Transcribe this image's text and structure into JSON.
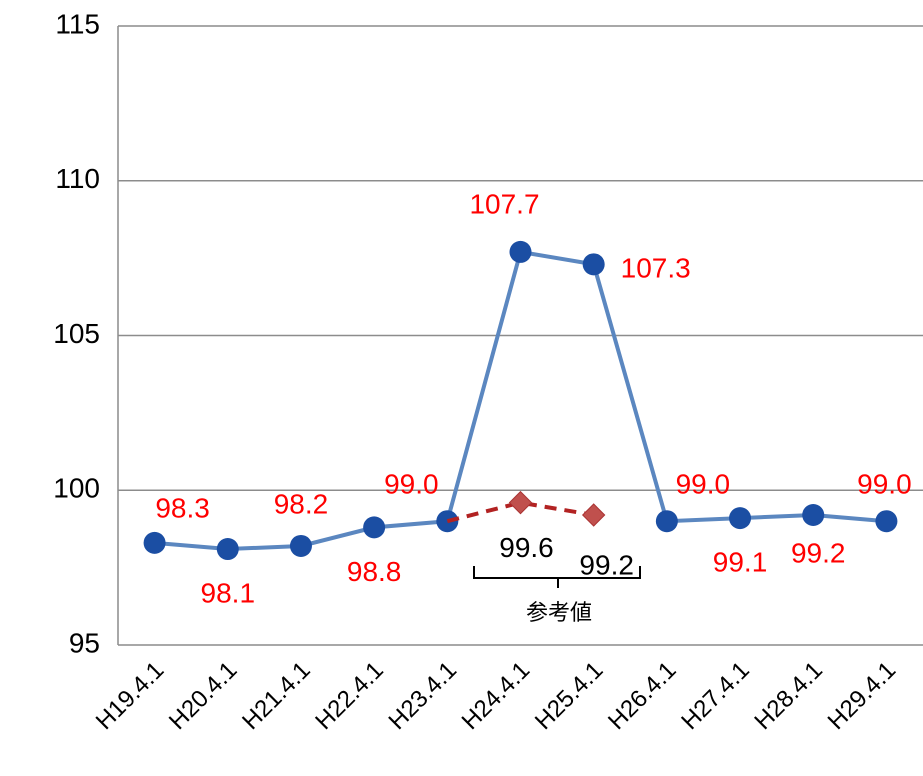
{
  "chart_data": {
    "type": "line",
    "categories": [
      "H19.4.1",
      "H20.4.1",
      "H21.4.1",
      "H22.4.1",
      "H23.4.1",
      "H24.4.1",
      "H25.4.1",
      "H26.4.1",
      "H27.4.1",
      "H28.4.1",
      "H29.4.1"
    ],
    "series": [
      {
        "name": null,
        "color": "#5b87c0",
        "marker_color": "#1b4ea3",
        "label_color": "#ff0000",
        "marker": "circle",
        "dashed": false,
        "values": [
          98.3,
          98.1,
          98.2,
          98.8,
          99.0,
          107.7,
          107.3,
          99.0,
          99.1,
          99.2,
          99.0
        ],
        "value_labels": [
          "98.3",
          "98.1",
          "98.2",
          "98.8",
          "99.0",
          "107.7",
          "107.3",
          "99.0",
          "99.1",
          "99.2",
          "99.0"
        ]
      },
      {
        "name": null,
        "color": "#b22222",
        "marker_color": "#c0504d",
        "label_color": "#000000",
        "marker": "diamond",
        "dashed": true,
        "values": [
          null,
          null,
          null,
          null,
          99.0,
          99.6,
          99.2,
          null,
          null,
          null,
          null
        ],
        "value_labels": [
          null,
          null,
          null,
          null,
          null,
          "99.6",
          "99.2",
          null,
          null,
          null,
          null
        ]
      }
    ],
    "annotations": [
      "参考値"
    ],
    "ylim": [
      95,
      115
    ],
    "yticks": [
      95,
      100,
      105,
      110,
      115
    ],
    "grid": true
  }
}
